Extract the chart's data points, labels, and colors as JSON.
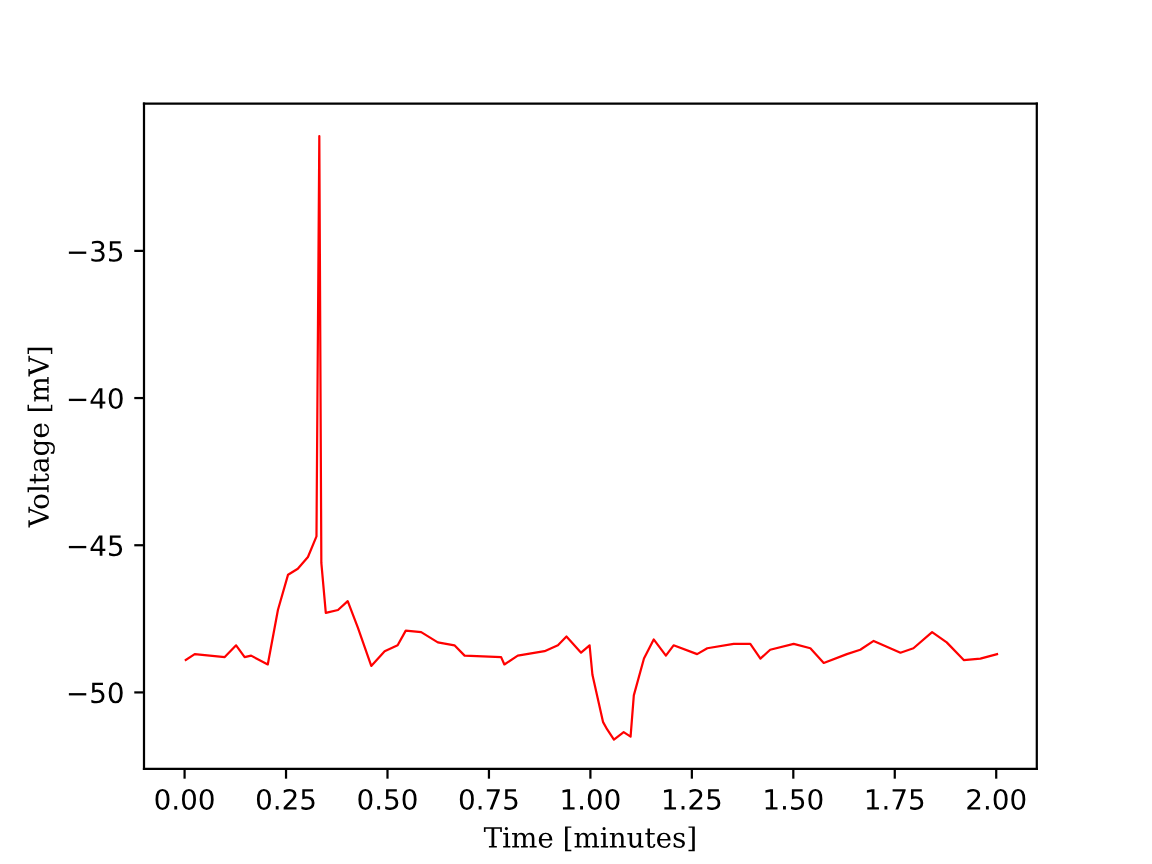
{
  "chart_data": {
    "type": "line",
    "xlabel": "Time [minutes]",
    "ylabel": "Voltage [mV]",
    "xlim": [
      -0.1,
      2.1
    ],
    "ylim": [
      -52.6,
      -30.0
    ],
    "xticks": [
      {
        "value": 0,
        "label": "0.00"
      },
      {
        "value": 0.25,
        "label": "0.25"
      },
      {
        "value": 0.5,
        "label": "0.50"
      },
      {
        "value": 0.75,
        "label": "0.75"
      },
      {
        "value": 1.0,
        "label": "1.00"
      },
      {
        "value": 1.25,
        "label": "1.25"
      },
      {
        "value": 1.5,
        "label": "1.50"
      },
      {
        "value": 1.75,
        "label": "1.75"
      },
      {
        "value": 2.0,
        "label": "2.00"
      }
    ],
    "yticks": [
      -50,
      -45,
      -40,
      -35
    ],
    "grid": false,
    "legend": false,
    "marker": "none",
    "line_style": "solid",
    "series": [
      {
        "color": "#ff0000",
        "x": [
          0.003,
          0.025,
          0.099,
          0.127,
          0.148,
          0.164,
          0.205,
          0.23,
          0.255,
          0.279,
          0.304,
          0.325,
          0.332,
          0.337,
          0.348,
          0.378,
          0.402,
          0.427,
          0.46,
          0.493,
          0.525,
          0.545,
          0.583,
          0.624,
          0.665,
          0.69,
          0.78,
          0.788,
          0.821,
          0.887,
          0.92,
          0.941,
          0.977,
          0.998,
          1.005,
          1.031,
          1.041,
          1.058,
          1.082,
          1.099,
          1.107,
          1.132,
          1.156,
          1.186,
          1.205,
          1.263,
          1.288,
          1.353,
          1.394,
          1.419,
          1.443,
          1.501,
          1.542,
          1.575,
          1.632,
          1.665,
          1.698,
          1.764,
          1.796,
          1.842,
          1.878,
          1.92,
          1.961,
          2.002
        ],
        "values": [
          -48.9,
          -48.7,
          -48.8,
          -48.4,
          -48.8,
          -48.75,
          -49.05,
          -47.2,
          -46.0,
          -45.8,
          -45.4,
          -44.7,
          -31.1,
          -45.6,
          -47.3,
          -47.2,
          -46.9,
          -47.8,
          -49.1,
          -48.6,
          -48.4,
          -47.9,
          -47.95,
          -48.3,
          -48.4,
          -48.75,
          -48.8,
          -49.05,
          -48.75,
          -48.6,
          -48.4,
          -48.1,
          -48.65,
          -48.4,
          -49.4,
          -51.0,
          -51.25,
          -51.6,
          -51.35,
          -51.5,
          -50.1,
          -48.85,
          -48.2,
          -48.75,
          -48.4,
          -48.7,
          -48.5,
          -48.35,
          -48.35,
          -48.85,
          -48.55,
          -48.35,
          -48.5,
          -49.0,
          -48.7,
          -48.55,
          -48.25,
          -48.65,
          -48.5,
          -47.95,
          -48.3,
          -48.9,
          -48.85,
          -48.7
        ]
      }
    ]
  }
}
